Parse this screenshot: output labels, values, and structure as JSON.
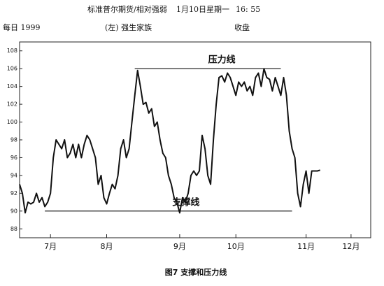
{
  "chart_data": {
    "type": "line",
    "header": [
      "标准普尔期货/相对强弱",
      "1月10日星期一",
      "16: 55"
    ],
    "subtitle_left": "每日 1999",
    "subtitle_mid": "(左) 强生家族",
    "subtitle_right": "收盘",
    "caption": "图7 支撑和压力线",
    "x": [
      0,
      1,
      2,
      3,
      4,
      5,
      6,
      7,
      8,
      9,
      10,
      11,
      12,
      13,
      14,
      15,
      16,
      17,
      18,
      19,
      20,
      21,
      22,
      23,
      24,
      25,
      26,
      27,
      28,
      29,
      30,
      31,
      32,
      33,
      34,
      35,
      36,
      37,
      38,
      39,
      40,
      41,
      42,
      43,
      44,
      45,
      46,
      47,
      48,
      49,
      50,
      51,
      52,
      53,
      54,
      55,
      56,
      57,
      58,
      59,
      60,
      61,
      62,
      63,
      64,
      65,
      66,
      67,
      68,
      69,
      70,
      71,
      72,
      73,
      74,
      75,
      76,
      77,
      78,
      79,
      80,
      81,
      82,
      83,
      84,
      85,
      86,
      87,
      88,
      89,
      90,
      91,
      92,
      93,
      94,
      95,
      96,
      97,
      98,
      99,
      100,
      101,
      102,
      103,
      104,
      105,
      106,
      107
    ],
    "series": [
      {
        "color": "#111111",
        "values": [
          93,
          92,
          89.8,
          91,
          90.8,
          91,
          92,
          91,
          91.5,
          90.5,
          91,
          92,
          96,
          98,
          97.5,
          97,
          98,
          96,
          96.5,
          97.5,
          96,
          97.5,
          96,
          97.5,
          98.5,
          98,
          97,
          96,
          93,
          94,
          91.5,
          90.8,
          92,
          93,
          92.5,
          94,
          97,
          98,
          96,
          97,
          100,
          103,
          105.8,
          104,
          102,
          102.2,
          101,
          101.5,
          99.5,
          100,
          98,
          96.5,
          96,
          94,
          93,
          91.5,
          91,
          89.8,
          91.5,
          91,
          92,
          94,
          94.5,
          94,
          94.5,
          98.5,
          97,
          94,
          93,
          98,
          102,
          105,
          105.2,
          104.5,
          105.5,
          105,
          104,
          103,
          104.5,
          104,
          104.5,
          103.5,
          104,
          103,
          105,
          105.5,
          104,
          106,
          105,
          104.8,
          103.5,
          105,
          104,
          103,
          105,
          103,
          99,
          97,
          96,
          92,
          90.5,
          93,
          94.5,
          92,
          94.5,
          94.5,
          94.5,
          94.6
        ]
      }
    ],
    "xlim": [
      0,
      125
    ],
    "xticks": [
      {
        "value": 11,
        "label": "7月"
      },
      {
        "value": 31,
        "label": "8月"
      },
      {
        "value": 57,
        "label": "9月"
      },
      {
        "value": 77,
        "label": "10月"
      },
      {
        "value": 102,
        "label": "11月"
      },
      {
        "value": 118,
        "label": "12月"
      }
    ],
    "ylim": [
      87,
      109
    ],
    "yticks": [
      88,
      90,
      92,
      94,
      96,
      98,
      100,
      102,
      104,
      106,
      108
    ],
    "levels": [
      {
        "label": "压力线",
        "value": 106,
        "from": 41,
        "to": 93
      },
      {
        "label": "支撑线",
        "value": 90,
        "from": 9,
        "to": 97
      }
    ]
  }
}
